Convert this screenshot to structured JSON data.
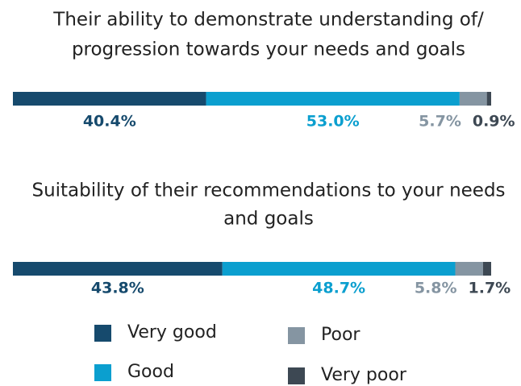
{
  "chart_data": {
    "type": "stacked_bar",
    "categories": [
      [
        "Their ability to demonstrate understanding of/",
        "progression towards your needs and goals"
      ],
      [
        "Suitability of their recommendations to your needs",
        "and goals"
      ]
    ],
    "series": [
      {
        "name": "Very good",
        "color": "#164a6d",
        "values": [
          40.4,
          43.8
        ],
        "value_labels": [
          "40.4%",
          "43.8%"
        ]
      },
      {
        "name": "Good",
        "color": "#0b9fcf",
        "values": [
          53.0,
          48.7
        ],
        "value_labels": [
          "53.0%",
          "48.7%"
        ]
      },
      {
        "name": "Poor",
        "color": "#8595a2",
        "values": [
          5.7,
          5.8
        ],
        "value_labels": [
          "5.7%",
          "5.8%"
        ]
      },
      {
        "name": "Very poor",
        "color": "#3d4853",
        "values": [
          0.9,
          1.7
        ],
        "value_labels": [
          "0.9%",
          "1.7%"
        ]
      }
    ]
  }
}
